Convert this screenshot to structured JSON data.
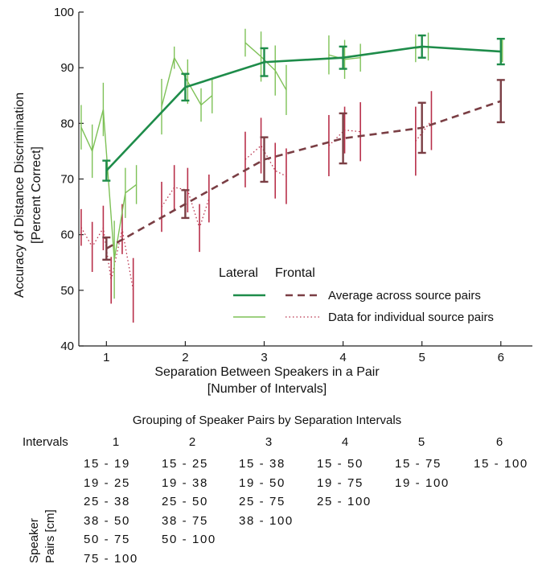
{
  "chart_data": {
    "type": "line",
    "ylabel": [
      "Accuracy of Distance Discrimination",
      "[Percent Correct]"
    ],
    "xlabel": [
      "Separation Between Speakers in a Pair",
      "[Number of Intervals]"
    ],
    "xlim": [
      0.65,
      6.4
    ],
    "ylim": [
      40,
      100
    ],
    "xticks": [
      1,
      2,
      3,
      4,
      5,
      6
    ],
    "yticks": [
      40,
      50,
      60,
      70,
      80,
      90,
      100
    ],
    "legend": {
      "col_headers": [
        "Lateral",
        "Frontal"
      ],
      "entries": [
        "Average across source pairs",
        "Data for individual source pairs"
      ],
      "placement": "lower-right"
    },
    "colors": {
      "lateral_avg": "#1e8c4a",
      "lateral_ind": "#7ec157",
      "frontal_avg": "#7a3e44",
      "frontal_ind": "#b8304a"
    },
    "series": [
      {
        "name": "Lateral - Average across source pairs",
        "x": [
          1,
          2,
          3,
          4,
          5,
          6
        ],
        "y": [
          71.5,
          86.5,
          91,
          91.8,
          93.8,
          92.9
        ],
        "err": [
          1.8,
          2.4,
          2.5,
          2.0,
          2.0,
          2.3
        ]
      },
      {
        "name": "Frontal - Average across source pairs",
        "x": [
          1,
          2,
          3,
          4,
          5,
          6
        ],
        "y": [
          57.5,
          65.5,
          73.5,
          77.3,
          79.2,
          84
        ],
        "err": [
          2.0,
          2.5,
          4.0,
          4.5,
          4.5,
          3.8
        ]
      },
      {
        "name": "Lateral - Data for individual source pairs",
        "groups": [
          {
            "x": [
              0.68,
              0.82,
              0.96,
              1.1,
              1.24,
              1.38
            ],
            "y": [
              79.3,
              75,
              82.5,
              55.5,
              67.5,
              69
            ],
            "err": [
              4.0,
              4.8,
              4.8,
              7.0,
              4.5,
              3.5
            ]
          },
          {
            "x": [
              1.7,
              1.86,
              2.03,
              2.2,
              2.34
            ],
            "y": [
              83,
              91.8,
              87.5,
              83.3,
              85
            ],
            "err": [
              5.0,
              2.0,
              4.0,
              3.0,
              3.2
            ]
          },
          {
            "x": [
              2.76,
              2.96,
              3.14,
              3.28
            ],
            "y": [
              94.5,
              92,
              89.5,
              86
            ],
            "err": [
              2.5,
              4.5,
              4.5,
              4.5
            ]
          },
          {
            "x": [
              3.82,
              4.02,
              4.22
            ],
            "y": [
              92.3,
              91.5,
              91.8
            ],
            "err": [
              3.5,
              3.5,
              2.5
            ]
          },
          {
            "x": [
              4.92,
              5.08
            ],
            "y": [
              93.5,
              93.8
            ],
            "err": [
              2.5,
              2.5
            ]
          },
          {
            "x": [
              6.02
            ],
            "y": [
              93
            ],
            "err": [
              2.0
            ]
          }
        ]
      },
      {
        "name": "Frontal - Data for individual source pairs",
        "groups": [
          {
            "x": [
              0.68,
              0.82,
              0.96,
              1.06,
              1.2,
              1.34
            ],
            "y": [
              61.3,
              57.8,
              61.2,
              51.8,
              61,
              50
            ],
            "err": [
              3.3,
              4.5,
              4.0,
              4.2,
              4.5,
              5.8
            ]
          },
          {
            "x": [
              1.7,
              1.86,
              2.03,
              2.18,
              2.3
            ],
            "y": [
              65,
              68.5,
              68,
              61.2,
              66.5
            ],
            "err": [
              4.5,
              4.0,
              4.0,
              4.3,
              4.3
            ]
          },
          {
            "x": [
              2.76,
              2.96,
              3.14,
              3.28
            ],
            "y": [
              73.5,
              76,
              71.5,
              70.5
            ],
            "err": [
              5.0,
              5.0,
              5.0,
              5.0
            ]
          },
          {
            "x": [
              3.82,
              4.02,
              4.22
            ],
            "y": [
              76,
              78.8,
              78.5
            ],
            "err": [
              5.5,
              4.2,
              5.3
            ]
          },
          {
            "x": [
              4.92,
              5.12
            ],
            "y": [
              76.8,
              80.5
            ],
            "err": [
              6.2,
              5.3
            ]
          }
        ]
      }
    ]
  },
  "table": {
    "title": "Grouping of Speaker Pairs by Separation Intervals",
    "row_label": "Intervals",
    "side_label": [
      "Speaker",
      "Pairs [cm]"
    ],
    "columns": [
      {
        "interval": "1",
        "pairs": [
          "15 - 19",
          "19 - 25",
          "25 - 38",
          "38 - 50",
          "50 - 75",
          "75 - 100"
        ]
      },
      {
        "interval": "2",
        "pairs": [
          "15 - 25",
          "19 - 38",
          "25 - 50",
          "38 - 75",
          "50 - 100"
        ]
      },
      {
        "interval": "3",
        "pairs": [
          "15 - 38",
          "19 - 50",
          "25 - 75",
          "38 - 100"
        ]
      },
      {
        "interval": "4",
        "pairs": [
          "15 - 50",
          "19 - 75",
          "25 - 100"
        ]
      },
      {
        "interval": "5",
        "pairs": [
          "15 - 75",
          "19 - 100"
        ]
      },
      {
        "interval": "6",
        "pairs": [
          "15 - 100"
        ]
      }
    ]
  }
}
